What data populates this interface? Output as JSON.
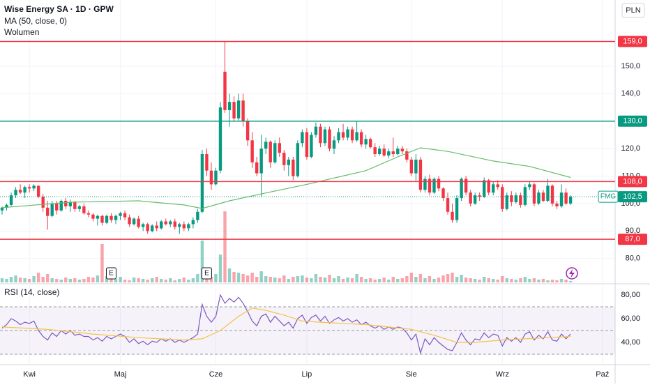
{
  "chart_data": {
    "type": "candlestick",
    "title": "Wise Energy SA · 1D · GPW",
    "currency": "PLN",
    "volume_name": "Wolumen",
    "xlim": [
      -0.46,
      134.8
    ],
    "xticks": [
      {
        "value": 6,
        "label": "Kwi"
      },
      {
        "value": 26,
        "label": "Maj"
      },
      {
        "value": 47,
        "label": "Cze"
      },
      {
        "value": 67,
        "label": "Lip"
      },
      {
        "value": 90,
        "label": "Sie"
      },
      {
        "value": 110,
        "label": "Wrz"
      },
      {
        "value": 132,
        "label": "Paź"
      }
    ],
    "ylim": [
      71.3,
      174.1
    ],
    "yticks": [
      {
        "value": 80,
        "label": "80,0"
      },
      {
        "value": 90,
        "label": "90,0"
      },
      {
        "value": 100,
        "label": "100,0"
      },
      {
        "value": 110,
        "label": "110,0"
      },
      {
        "value": 120,
        "label": "120,0"
      },
      {
        "value": 130,
        "label": "130,0"
      },
      {
        "value": 140,
        "label": "140,0"
      },
      {
        "value": 150,
        "label": "150,0"
      }
    ],
    "grid": true,
    "up_color": "#089981",
    "down_color": "#f23645",
    "candles": [
      [
        97.5,
        99,
        96,
        98.5
      ],
      [
        98.5,
        100,
        97.5,
        99.5
      ],
      [
        99.5,
        104,
        99,
        103
      ],
      [
        103,
        106,
        102,
        105
      ],
      [
        105,
        107,
        103.5,
        104
      ],
      [
        104,
        106.5,
        102,
        106
      ],
      [
        106,
        107,
        104,
        105.5
      ],
      [
        105.5,
        107,
        104.5,
        106.5
      ],
      [
        106.5,
        106.5,
        102,
        102.5
      ],
      [
        102.5,
        103.5,
        97,
        98.5
      ],
      [
        98.5,
        101,
        90.5,
        95.5
      ],
      [
        95.5,
        101,
        95,
        100
      ],
      [
        100,
        101,
        96,
        97.5
      ],
      [
        97.5,
        101.5,
        97,
        101
      ],
      [
        101,
        102,
        98,
        99
      ],
      [
        99,
        101.5,
        97,
        100.5
      ],
      [
        100.5,
        101,
        97,
        98
      ],
      [
        98,
        99.5,
        97,
        99
      ],
      [
        99,
        100,
        96,
        96.5
      ],
      [
        96.5,
        97.5,
        95,
        96
      ],
      [
        96,
        96.5,
        93.5,
        94.5
      ],
      [
        94.5,
        96,
        92,
        95.5
      ],
      [
        95.5,
        96,
        92,
        93
      ],
      [
        93,
        96,
        92.5,
        95.5
      ],
      [
        95.5,
        96.5,
        93,
        94
      ],
      [
        94,
        96,
        92.5,
        95.5
      ],
      [
        95.5,
        97,
        94,
        96.5
      ],
      [
        96.5,
        97.5,
        94,
        95
      ],
      [
        95,
        96,
        91.5,
        92.5
      ],
      [
        92.5,
        95,
        92,
        94.5
      ],
      [
        94.5,
        95.5,
        91,
        91.5
      ],
      [
        91.5,
        93,
        90,
        92.5
      ],
      [
        92.5,
        93,
        89,
        90
      ],
      [
        90,
        92.5,
        89.5,
        92
      ],
      [
        92,
        93.5,
        90,
        91
      ],
      [
        91,
        94,
        90.5,
        93.5
      ],
      [
        93.5,
        94.5,
        92,
        92.5
      ],
      [
        92.5,
        94,
        91.5,
        93.5
      ],
      [
        93.5,
        94.5,
        90.5,
        91.5
      ],
      [
        91.5,
        93,
        89,
        92.5
      ],
      [
        92.5,
        93.5,
        90,
        91
      ],
      [
        91,
        93,
        90,
        92.5
      ],
      [
        92.5,
        95,
        91,
        94
      ],
      [
        94,
        98,
        93,
        97
      ],
      [
        97,
        119.5,
        96.5,
        118
      ],
      [
        118,
        120,
        110,
        112
      ],
      [
        112,
        115,
        105,
        107
      ],
      [
        107,
        113,
        106.5,
        112
      ],
      [
        112,
        137,
        111,
        135
      ],
      [
        148,
        159,
        133,
        134
      ],
      [
        134,
        140,
        128,
        137
      ],
      [
        137,
        139,
        130,
        131
      ],
      [
        131,
        140,
        130,
        137.5
      ],
      [
        137.5,
        140,
        128,
        130
      ],
      [
        130,
        131,
        121,
        123
      ],
      [
        123,
        126,
        113,
        115
      ],
      [
        115,
        117,
        110,
        111
      ],
      [
        111,
        125,
        102.5,
        120
      ],
      [
        120,
        124,
        118,
        122.5
      ],
      [
        122.5,
        123,
        113,
        115
      ],
      [
        115,
        123,
        114.5,
        122
      ],
      [
        122,
        124,
        117,
        118.5
      ],
      [
        118.5,
        119.5,
        112,
        114
      ],
      [
        114,
        117,
        110,
        116
      ],
      [
        116,
        117,
        108.5,
        110
      ],
      [
        110,
        123,
        109.5,
        122
      ],
      [
        122,
        127,
        120.5,
        126
      ],
      [
        126,
        127.5,
        116,
        117
      ],
      [
        117,
        126,
        116.5,
        125
      ],
      [
        125,
        129.5,
        124,
        128
      ],
      [
        128,
        129,
        120.5,
        122
      ],
      [
        122,
        128,
        121,
        127
      ],
      [
        127,
        128,
        119,
        120
      ],
      [
        120,
        124.5,
        118,
        123
      ],
      [
        123,
        127.5,
        122,
        126
      ],
      [
        126,
        129,
        123,
        124
      ],
      [
        124,
        128,
        123,
        127
      ],
      [
        127,
        128,
        122,
        123
      ],
      [
        123,
        130,
        122.5,
        126
      ],
      [
        126,
        127,
        120.5,
        121.5
      ],
      [
        121.5,
        125,
        120,
        123.5
      ],
      [
        123.5,
        124,
        120,
        120.5
      ],
      [
        120.5,
        122,
        117,
        118
      ],
      [
        118,
        121,
        117.5,
        120
      ],
      [
        120,
        121.5,
        117,
        117.5
      ],
      [
        117.5,
        120,
        116.5,
        119
      ],
      [
        119,
        124,
        117,
        118
      ],
      [
        118,
        121,
        117.5,
        120
      ],
      [
        120,
        121,
        118,
        119
      ],
      [
        119,
        120,
        115,
        116
      ],
      [
        116,
        117,
        110,
        111
      ],
      [
        111,
        118,
        108,
        116
      ],
      [
        116,
        117,
        104,
        105
      ],
      [
        105,
        110,
        104,
        109
      ],
      [
        109,
        110.5,
        103,
        104
      ],
      [
        104,
        109.5,
        103.5,
        109
      ],
      [
        109,
        110,
        104.5,
        105.5
      ],
      [
        105.5,
        106,
        101,
        102
      ],
      [
        102,
        104,
        96,
        97
      ],
      [
        97,
        100,
        93,
        94
      ],
      [
        94,
        103,
        93,
        102
      ],
      [
        102,
        109.5,
        101,
        109
      ],
      [
        109,
        110,
        103,
        104
      ],
      [
        104,
        105,
        99,
        100
      ],
      [
        100,
        104,
        99.5,
        103
      ],
      [
        103,
        104,
        101,
        102.5
      ],
      [
        102.5,
        109.5,
        102,
        108.5
      ],
      [
        108.5,
        109,
        103,
        104
      ],
      [
        104,
        108,
        103,
        107
      ],
      [
        107,
        108.5,
        105,
        106
      ],
      [
        106,
        107,
        97,
        98
      ],
      [
        98,
        104,
        97.5,
        103
      ],
      [
        103,
        104.5,
        99,
        100.5
      ],
      [
        100.5,
        104,
        100,
        103
      ],
      [
        103,
        104,
        98.5,
        99.5
      ],
      [
        99.5,
        107,
        99,
        106
      ],
      [
        106,
        108,
        105,
        107
      ],
      [
        107,
        107.5,
        99,
        100
      ],
      [
        100,
        105,
        99.5,
        104
      ],
      [
        104,
        105,
        100.5,
        101
      ],
      [
        101,
        109,
        100.5,
        106.5
      ],
      [
        106.5,
        107,
        99,
        100
      ],
      [
        100,
        101,
        98,
        99
      ],
      [
        99,
        107,
        98.5,
        104
      ],
      [
        104,
        105.5,
        99.5,
        100
      ],
      [
        100,
        103,
        99.5,
        102.5
      ]
    ],
    "volume": [
      6,
      5,
      8,
      10,
      7,
      6,
      5,
      9,
      14,
      8,
      12,
      6,
      5,
      4,
      7,
      5,
      6,
      4,
      5,
      8,
      7,
      10,
      55,
      9,
      6,
      5,
      8,
      4,
      3,
      7,
      6,
      5,
      4,
      6,
      8,
      5,
      4,
      6,
      3,
      5,
      7,
      4,
      6,
      12,
      60,
      10,
      8,
      12,
      40,
      102,
      20,
      15,
      14,
      12,
      10,
      14,
      8,
      16,
      9,
      8,
      7,
      6,
      10,
      5,
      8,
      9,
      10,
      7,
      6,
      12,
      8,
      7,
      11,
      6,
      9,
      5,
      7,
      6,
      12,
      8,
      5,
      6,
      4,
      5,
      7,
      4,
      8,
      5,
      6,
      9,
      14,
      8,
      12,
      6,
      9,
      5,
      7,
      10,
      12,
      14,
      8,
      11,
      7,
      6,
      5,
      4,
      8,
      6,
      5,
      4,
      9,
      6,
      5,
      4,
      6,
      8,
      5,
      6,
      4,
      5,
      3,
      4,
      3,
      5,
      4,
      2
    ],
    "volume_lim": [
      0,
      405
    ],
    "ma": {
      "name": "MA (50, close, 0)",
      "color": "#66bb6a",
      "x": [
        0,
        15,
        30,
        40,
        44,
        50,
        57,
        67,
        80,
        87,
        92,
        98,
        108,
        116,
        125
      ],
      "values": [
        98.5,
        100.5,
        101,
        99.5,
        98.2,
        101,
        103.5,
        107,
        112,
        117,
        120.3,
        119,
        115.5,
        113.5,
        109.5
      ]
    },
    "levels": [
      {
        "value": 159,
        "label": "159,0",
        "color": "#f23645"
      },
      {
        "value": 130,
        "label": "130,0",
        "color": "#089981"
      },
      {
        "value": 108,
        "label": "108,0",
        "color": "#f23645"
      },
      {
        "value": 87,
        "label": "87,0",
        "color": "#f23645"
      }
    ],
    "last_price": {
      "name": "FMG",
      "value": 102.5,
      "label": "102,5",
      "color": "#089981"
    },
    "earnings": [
      {
        "x": 24,
        "label": "E"
      },
      {
        "x": 45,
        "label": "E"
      }
    ],
    "rsi": {
      "name": "RSI (14, close)",
      "color": "#7e57c2",
      "values": [
        52,
        55,
        60,
        58,
        55,
        57,
        56,
        58,
        50,
        45,
        42,
        48,
        45,
        50,
        47,
        50,
        46,
        47,
        45,
        45,
        42,
        44,
        41,
        45,
        43,
        45,
        47,
        45,
        40,
        43,
        39,
        41,
        38,
        41,
        40,
        43,
        41,
        43,
        40,
        42,
        40,
        42,
        44,
        47,
        72,
        62,
        57,
        62,
        80,
        73,
        77,
        74,
        78,
        73,
        66,
        58,
        54,
        62,
        64,
        57,
        62,
        58,
        54,
        57,
        52,
        60,
        63,
        56,
        61,
        63,
        58,
        62,
        56,
        59,
        61,
        58,
        60,
        57,
        59,
        55,
        57,
        54,
        52,
        54,
        51,
        53,
        51,
        53,
        52,
        48,
        42,
        47,
        31,
        43,
        38,
        44,
        40,
        37,
        34,
        33,
        40,
        48,
        42,
        38,
        43,
        42,
        48,
        44,
        47,
        46,
        37,
        44,
        41,
        44,
        40,
        47,
        49,
        42,
        46,
        43,
        49,
        42,
        41,
        47,
        43,
        47
      ],
      "ma": {
        "color": "#f5c242",
        "x": [
          0,
          10,
          20,
          30,
          40,
          44,
          48,
          52,
          55,
          58,
          62,
          66,
          70,
          75,
          80,
          85,
          90,
          95,
          100,
          104,
          110,
          115,
          120,
          125
        ],
        "values": [
          53,
          51,
          47,
          44,
          42,
          43,
          50,
          62,
          69,
          67,
          63,
          58,
          57,
          56,
          55,
          53,
          51,
          46,
          40,
          40,
          42,
          43,
          44,
          45
        ]
      },
      "ylim": [
        21.8,
        88.8
      ],
      "yticks": [
        {
          "value": 40,
          "label": "40,00"
        },
        {
          "value": 60,
          "label": "60,00"
        },
        {
          "value": 80,
          "label": "80,00"
        }
      ],
      "band": [
        30,
        70
      ],
      "mid": 50
    }
  }
}
